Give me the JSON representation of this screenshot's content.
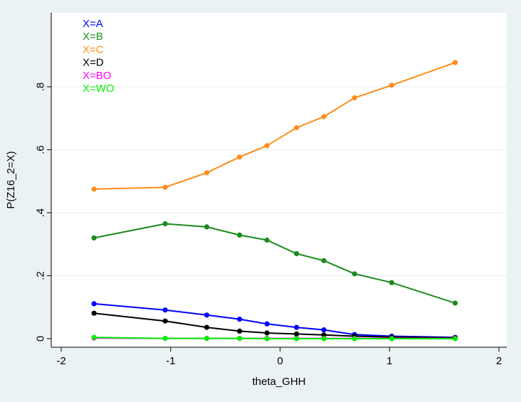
{
  "chart_data": {
    "type": "line",
    "xlabel": "theta_GHH",
    "ylabel": "P(Z16_2=X)",
    "xlim": [
      -2,
      2
    ],
    "ylim": [
      0,
      1
    ],
    "x_ticks": [
      -2,
      -1,
      0,
      1,
      2
    ],
    "x_tick_labels": [
      "-2",
      "-1",
      "0",
      "1",
      "2"
    ],
    "y_ticks": [
      0,
      0.2,
      0.4,
      0.6,
      0.8
    ],
    "y_tick_labels": [
      "0",
      ".2",
      ".4",
      ".6",
      ".8"
    ],
    "grid": true,
    "legend_position": "top-left",
    "x": [
      -1.7,
      -1.05,
      -0.67,
      -0.37,
      -0.12,
      0.15,
      0.4,
      0.68,
      1.02,
      1.6
    ],
    "series": [
      {
        "name": "X=A",
        "color": "#0000ff",
        "values": [
          0.111,
          0.091,
          0.075,
          0.062,
          0.047,
          0.036,
          0.028,
          0.013,
          0.008,
          0.004
        ]
      },
      {
        "name": "X=B",
        "color": "#1a8a1a",
        "values": [
          0.32,
          0.365,
          0.355,
          0.329,
          0.313,
          0.27,
          0.248,
          0.206,
          0.178,
          0.113
        ]
      },
      {
        "name": "X=C",
        "color": "#ff8c1a",
        "values": [
          0.475,
          0.481,
          0.527,
          0.577,
          0.613,
          0.67,
          0.705,
          0.765,
          0.805,
          0.877
        ]
      },
      {
        "name": "X=D",
        "color": "#000000",
        "values": [
          0.081,
          0.056,
          0.036,
          0.024,
          0.018,
          0.015,
          0.012,
          0.008,
          0.005,
          0.003
        ]
      },
      {
        "name": "X=BO",
        "color": "#ff00ff",
        "values": [
          0.002,
          0.001,
          0.001,
          0.001,
          0.001,
          0.001,
          0.001,
          0.001,
          0.001,
          0.001
        ]
      },
      {
        "name": "X=WO",
        "color": "#00ee00",
        "values": [
          0.004,
          0.001,
          0.001,
          0.001,
          0.0,
          0.0,
          0.0,
          0.0,
          0.0,
          0.0
        ]
      }
    ]
  }
}
